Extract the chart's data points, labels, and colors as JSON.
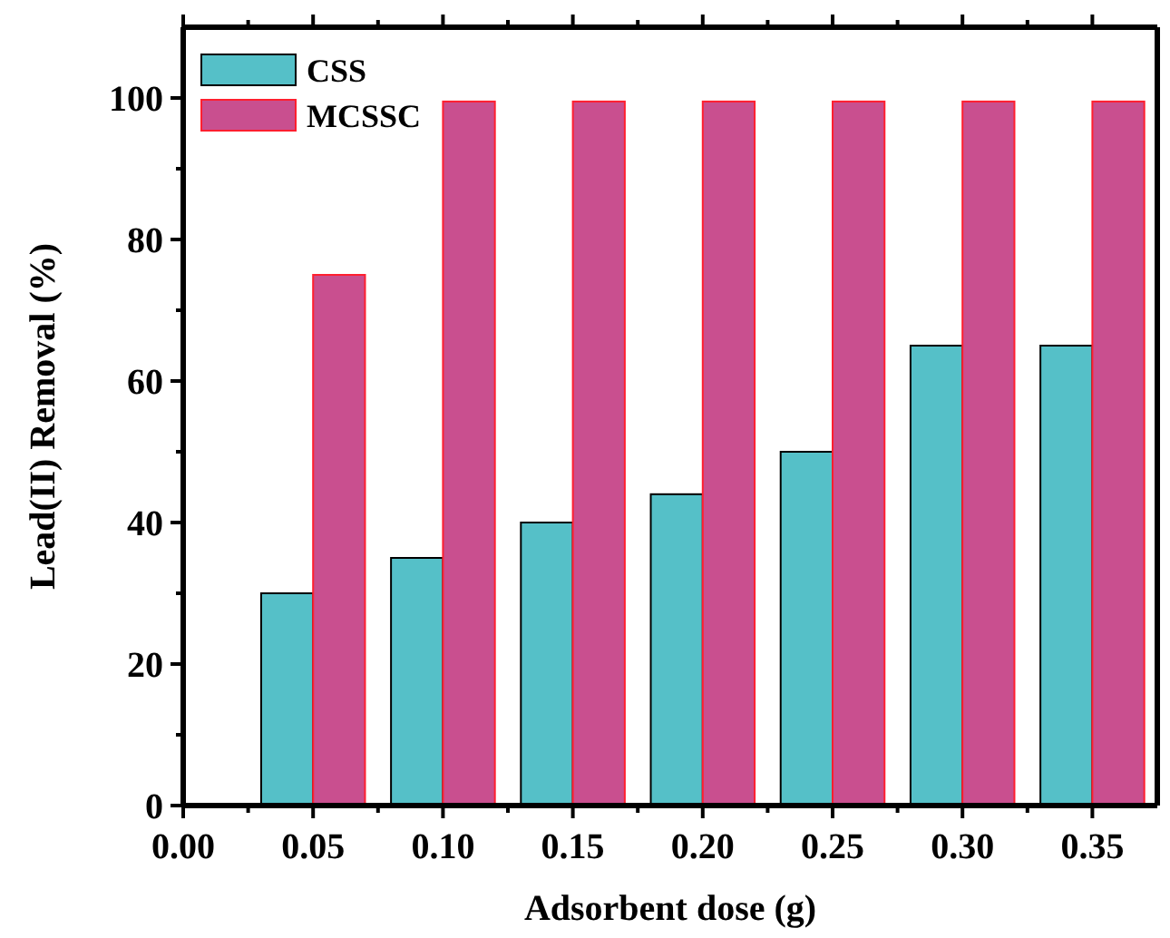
{
  "chart_data": {
    "type": "bar",
    "xlabel": "Adsorbent dose (g)",
    "ylabel": "Lead(II) Removal (%)",
    "x": [
      0.05,
      0.1,
      0.15,
      0.2,
      0.25,
      0.3,
      0.35
    ],
    "series": [
      {
        "name": "CSS",
        "color": "#55c0c8",
        "values": [
          30,
          35,
          40,
          44,
          50,
          65,
          65
        ]
      },
      {
        "name": "MCSSC",
        "color": "#c94f8f",
        "values": [
          75,
          99.5,
          99.5,
          99.5,
          99.5,
          99.5,
          99.5
        ]
      }
    ],
    "xlim": [
      0,
      0.375
    ],
    "xticks": [
      {
        "value": 0,
        "label": "0.00"
      },
      {
        "value": 0.025,
        "label": null
      },
      {
        "value": 0.05,
        "label": "0.05"
      },
      {
        "value": 0.075,
        "label": null
      },
      {
        "value": 0.1,
        "label": "0.10"
      },
      {
        "value": 0.125,
        "label": null
      },
      {
        "value": 0.15,
        "label": "0.15"
      },
      {
        "value": 0.175,
        "label": null
      },
      {
        "value": 0.2,
        "label": "0.20"
      },
      {
        "value": 0.225,
        "label": null
      },
      {
        "value": 0.25,
        "label": "0.25"
      },
      {
        "value": 0.275,
        "label": null
      },
      {
        "value": 0.3,
        "label": "0.30"
      },
      {
        "value": 0.325,
        "label": null
      },
      {
        "value": 0.35,
        "label": "0.35"
      }
    ],
    "ylim": [
      0,
      110
    ],
    "yticks": [
      0,
      {
        "value": 10,
        "label": null
      },
      20,
      {
        "value": 30,
        "label": null
      },
      40,
      {
        "value": 50,
        "label": null
      },
      60,
      {
        "value": 70,
        "label": null
      },
      80,
      {
        "value": 90,
        "label": null
      },
      100
    ],
    "legend": "top left",
    "grid": false
  }
}
